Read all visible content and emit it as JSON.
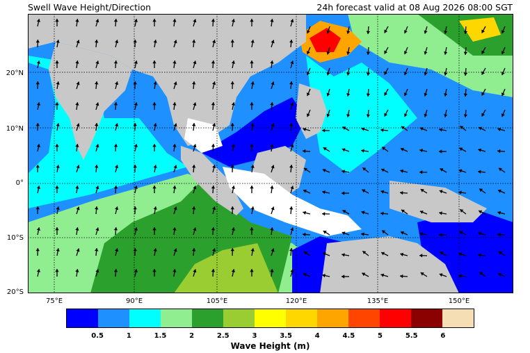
{
  "header": {
    "title": "Swell Wave Height/Direction",
    "valid_time": "24h forecast valid at 08 Aug 2026 08:00 SGT"
  },
  "axes": {
    "lat_labels": [
      "20°N",
      "10°N",
      "0°",
      "10°S",
      "20°S"
    ],
    "lon_labels": [
      "75°E",
      "90°E",
      "105°E",
      "120°E",
      "135°E",
      "150°E"
    ]
  },
  "legend": {
    "title": "Wave Height (m)",
    "ticks": [
      "0.5",
      "1",
      "1.5",
      "2",
      "2.5",
      "3",
      "3.5",
      "4",
      "4.5",
      "5",
      "5.5",
      "6"
    ],
    "colors": [
      "#0000ff",
      "#1e90ff",
      "#00ffff",
      "#90ee90",
      "#2ca02c",
      "#9acd32",
      "#ffff00",
      "#ffd700",
      "#ffa500",
      "#ff4500",
      "#ff0000",
      "#8b0000",
      "#f5deb3"
    ]
  },
  "colors": {
    "land": "#c8c8c8",
    "no_data": "#ffffff"
  }
}
